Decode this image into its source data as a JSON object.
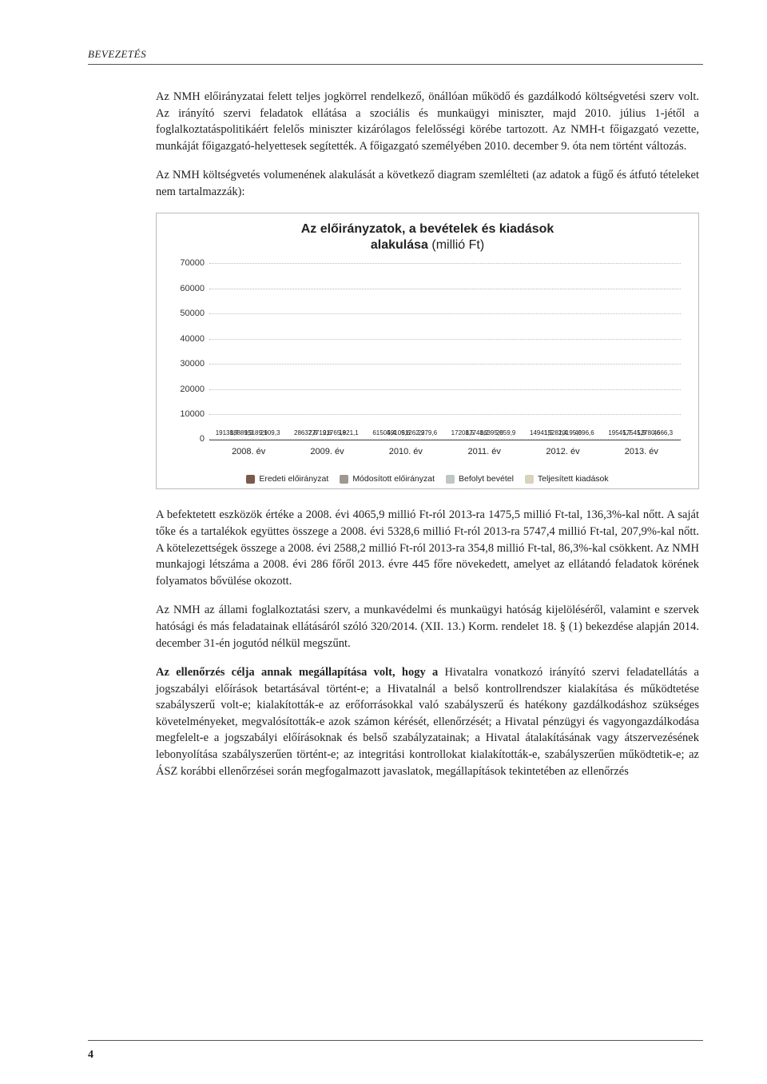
{
  "header": {
    "label": "BEVEZETÉS"
  },
  "footer": {
    "pagenum": "4"
  },
  "paragraphs": {
    "p1": "Az NMH előirányzatai felett teljes jogkörrel rendelkező, önállóan működő és gazdálkodó költségvetési szerv volt. Az irányító szervi feladatok ellátása a szociális és munkaügyi miniszter, majd 2010. július 1-jétől a foglalkoztatáspolitikáért felelős miniszter kizárólagos felelősségi körébe tartozott. Az NMH-t főigazgató vezette, munkáját főigazgató-helyettesek segítették. A főigazgató személyében 2010. december 9. óta nem történt változás.",
    "p2": "Az NMH költségvetés volumenének alakulását a következő diagram szemlélteti (az adatok a fügő és átfutó tételeket nem tartalmazzák):",
    "p3": "A befektetett eszközök értéke a 2008. évi 4065,9 millió Ft-ról 2013-ra 1475,5 millió Ft-tal, 136,3%-kal nőtt. A saját tőke és a tartalékok együttes összege a 2008. évi 5328,6 millió Ft-ról 2013-ra 5747,4 millió Ft-tal, 207,9%-kal nőtt. A kötelezettségek összege a 2008. évi 2588,2 millió Ft-ról 2013-ra 354,8 millió Ft-tal, 86,3%-kal csökkent. Az NMH munkajogi létszáma a 2008. évi 286 főről 2013. évre 445 főre növekedett, amelyet az ellátandó feladatok körének folyamatos bővülése okozott.",
    "p4": "Az NMH az állami foglalkoztatási szerv, a munkavédelmi és munkaügyi hatóság kijelöléséről, valamint e szervek hatósági és más feladatainak ellátásáról szóló 320/2014. (XII. 13.) Korm. rendelet 18. § (1) bekezdése alapján 2014. december 31-én jogutód nélkül megszűnt.",
    "p5_bold": "Az ellenőrzés célja annak megállapítása volt, hogy a",
    "p5_rest": " Hivatalra vonatkozó irányító szervi feladatellátás a jogszabályi előírások betartásával történt-e; a Hivatalnál a belső kontrollrendszer kialakítása és működtetése szabályszerű volt-e; kialakították-e az erőforrásokkal való szabályszerű és hatékony gazdálkodáshoz szükséges követelményeket, megvalósították-e azok számon kérését, ellenőrzését; a Hivatal pénzügyi és vagyongazdálkodása megfelelt-e a jogszabályi előírásoknak és belső szabályzatainak; a Hivatal átalakításának vagy átszervezésének lebonyolítása szabályszerűen történt-e; az integritási kontrollokat kialakították-e, szabályszerűen működtetik-e; az ÁSZ korábbi ellenőrzései során megfogalmazott javaslatok, megállapítások tekintetében az ellenőrzés"
  },
  "chart": {
    "title_line1": "Az előirányzatok, a bevételek és kiadások",
    "title_line2": "alakulása",
    "title_unit": "(millió Ft)",
    "ylim_max": 70000,
    "yticks": [
      0,
      10000,
      20000,
      30000,
      40000,
      50000,
      60000,
      70000
    ],
    "categories": [
      "2008. év",
      "2009. év",
      "2010. év",
      "2011. év",
      "2012. év",
      "2013. év"
    ],
    "colors": {
      "eredeti": "#7b5a4b",
      "modositott": "#9e9890",
      "befolyt": "#bfc7c2",
      "teljesitett": "#d8d2be",
      "grid": "#bcbcbc",
      "axis": "#555555"
    },
    "series": {
      "eredeti": [
        19138.7,
        28637.8,
        61504.4,
        17208.5,
        14941.5,
        19545.7
      ],
      "modositott": [
        18889.9,
        27719.6,
        59109.6,
        17748.2,
        15282.4,
        17545.9
      ],
      "befolyt": [
        15189.1,
        21765.8,
        51262.2,
        16395.0,
        10195.0,
        12780.6
      ],
      "teljesitett": [
        2909.3,
        1921.1,
        2979.6,
        2859.9,
        4696.6,
        4666.3
      ]
    },
    "legend": [
      {
        "key": "eredeti",
        "label": "Eredeti előirányzat"
      },
      {
        "key": "modositott",
        "label": "Módosított előirányzat"
      },
      {
        "key": "befolyt",
        "label": "Befolyt bevétel"
      },
      {
        "key": "teljesitett",
        "label": "Teljesített kiadások"
      }
    ]
  }
}
